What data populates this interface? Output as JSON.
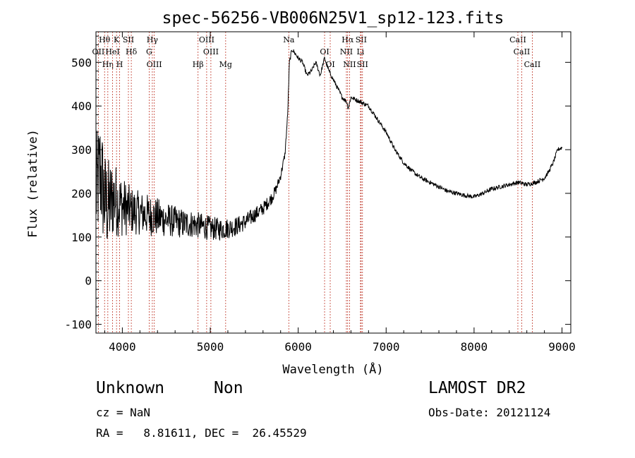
{
  "title": "spec-56256-VB006N25V1_sp12-123.fits",
  "info": {
    "class": "Unknown",
    "subclass": "Non",
    "survey": "LAMOST DR2",
    "cz": "cz = NaN",
    "obs_date": "Obs-Date: 20121124",
    "radec": "RA =   8.81611, DEC =  26.45529"
  },
  "chart_data": {
    "type": "line",
    "title": "spec-56256-VB006N25V1_sp12-123.fits",
    "xlabel": "Wavelength (Å)",
    "ylabel": "Flux (relative)",
    "xlim": [
      3700,
      9100
    ],
    "ylim": [
      -120,
      570
    ],
    "xticks": [
      4000,
      5000,
      6000,
      7000,
      8000,
      9000
    ],
    "yticks": [
      -100,
      0,
      100,
      200,
      300,
      400,
      500
    ],
    "series": [
      {
        "name": "flux",
        "x": [
          3700,
          3750,
          3800,
          3850,
          3900,
          3950,
          4000,
          4100,
          4200,
          4300,
          4400,
          4500,
          4600,
          4700,
          4800,
          4900,
          5000,
          5100,
          5200,
          5300,
          5400,
          5500,
          5600,
          5700,
          5750,
          5800,
          5850,
          5880,
          5900,
          5930,
          6000,
          6050,
          6100,
          6150,
          6200,
          6250,
          6300,
          6350,
          6400,
          6450,
          6500,
          6550,
          6570,
          6600,
          6650,
          6700,
          6750,
          6800,
          6900,
          7000,
          7100,
          7200,
          7300,
          7400,
          7500,
          7600,
          7700,
          7800,
          7900,
          8000,
          8100,
          8200,
          8300,
          8400,
          8500,
          8600,
          8700,
          8800,
          8850,
          8900,
          8950,
          9000
        ],
        "y": [
          200,
          250,
          180,
          170,
          190,
          180,
          170,
          160,
          155,
          150,
          145,
          140,
          135,
          130,
          130,
          125,
          120,
          118,
          120,
          125,
          135,
          150,
          165,
          190,
          210,
          240,
          290,
          380,
          500,
          530,
          510,
          500,
          470,
          480,
          500,
          470,
          510,
          480,
          460,
          440,
          420,
          410,
          395,
          420,
          415,
          410,
          405,
          400,
          370,
          340,
          300,
          270,
          250,
          235,
          225,
          215,
          205,
          200,
          195,
          192,
          200,
          210,
          215,
          220,
          225,
          220,
          225,
          235,
          250,
          270,
          300,
          305
        ],
        "noise": [
          130,
          140,
          120,
          110,
          90,
          80,
          70,
          55,
          50,
          48,
          45,
          40,
          36,
          34,
          32,
          30,
          28,
          26,
          24,
          22,
          20,
          18,
          16,
          14,
          12,
          10,
          8,
          6,
          6,
          6,
          5,
          5,
          5,
          5,
          5,
          5,
          5,
          5,
          5,
          5,
          5,
          5,
          5,
          5,
          5,
          5,
          5,
          5,
          5,
          5,
          5,
          5,
          5,
          5,
          5,
          5,
          5,
          5,
          5,
          5,
          5,
          5,
          5,
          5,
          5,
          5,
          5,
          5,
          5,
          5,
          5,
          5
        ]
      }
    ],
    "lines": [
      {
        "label": "Hθ",
        "wave": 3798
      },
      {
        "label": "OII",
        "wave": 3727
      },
      {
        "label": "Hη",
        "wave": 3835
      },
      {
        "label": "K",
        "wave": 3934
      },
      {
        "label": "HeI",
        "wave": 3889
      },
      {
        "label": "H",
        "wave": 3969
      },
      {
        "label": "SII",
        "wave": 4069
      },
      {
        "label": "Hδ",
        "wave": 4102
      },
      {
        "label": "OIII",
        "wave": 4363
      },
      {
        "label": "Hγ",
        "wave": 4341
      },
      {
        "label": "G",
        "wave": 4305
      },
      {
        "label": "Hβ",
        "wave": 4861
      },
      {
        "label": "OIII",
        "wave": 4959
      },
      {
        "label": "OIII",
        "wave": 5007
      },
      {
        "label": "Mg",
        "wave": 5175
      },
      {
        "label": "Na",
        "wave": 5893
      },
      {
        "label": "OI",
        "wave": 6300
      },
      {
        "label": "OI",
        "wave": 6364
      },
      {
        "label": "Hα",
        "wave": 6563
      },
      {
        "label": "NII",
        "wave": 6548
      },
      {
        "label": "NII",
        "wave": 6584
      },
      {
        "label": "SII",
        "wave": 6716
      },
      {
        "label": "Li",
        "wave": 6708
      },
      {
        "label": "SII",
        "wave": 6731
      },
      {
        "label": "CaII",
        "wave": 8498
      },
      {
        "label": "CaII",
        "wave": 8542
      },
      {
        "label": "CaII",
        "wave": 8662
      }
    ]
  }
}
